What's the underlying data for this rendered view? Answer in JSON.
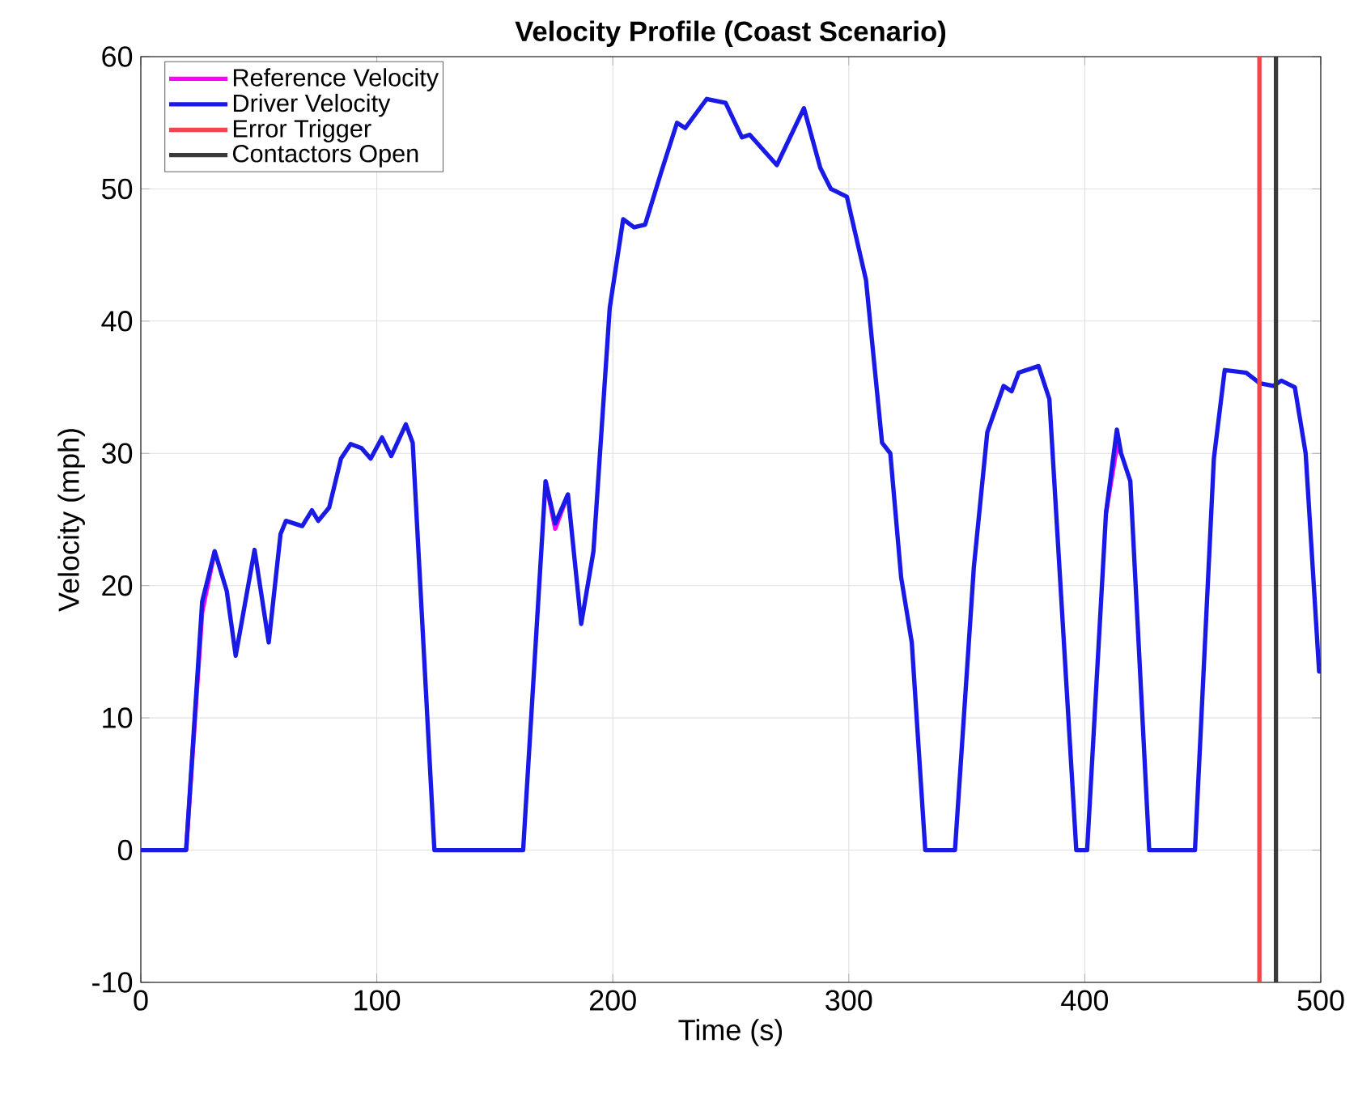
{
  "chart_data": {
    "type": "line",
    "title": "Velocity Profile (Coast Scenario)",
    "xlabel": "Time (s)",
    "ylabel": "Velocity (mph)",
    "xlim": [
      0,
      500
    ],
    "ylim": [
      -10,
      60
    ],
    "xticks": [
      0,
      100,
      200,
      300,
      400,
      500
    ],
    "yticks": [
      -10,
      0,
      10,
      20,
      30,
      40,
      50,
      60
    ],
    "grid": true,
    "legend": "top left",
    "line_style": "solid",
    "marker": "none",
    "series": [
      {
        "name": "Reference Velocity",
        "color": "#ff00ff",
        "x": [
          19.2,
          26,
          31.3,
          null,
          171.5,
          175.6,
          181,
          null,
          409,
          413.6,
          415.4
        ],
        "values": [
          0,
          18,
          22.6,
          null,
          27.9,
          24.3,
          26.9,
          null,
          25.5,
          30.5,
          30
        ]
      },
      {
        "name": "Driver Velocity",
        "color": "#1a1ae6",
        "x": [
          0,
          19.2,
          26,
          31.3,
          36.4,
          40.2,
          48.2,
          54.2,
          59.2,
          61.5,
          68.4,
          72.5,
          75.2,
          79.8,
          84.8,
          88.9,
          93.5,
          97.4,
          102.2,
          106.1,
          112.3,
          115.2,
          124.4,
          162,
          171.5,
          175.6,
          181,
          186.6,
          191.8,
          198.7,
          204.4,
          209,
          213.7,
          220.4,
          227.2,
          230.7,
          239.8,
          247.8,
          254.7,
          258,
          269.5,
          281,
          287.9,
          292.4,
          299.2,
          307.3,
          314.1,
          317.6,
          322.2,
          326.7,
          332.4,
          345,
          353,
          358.7,
          365.6,
          369,
          372,
          380.4,
          385,
          396.4,
          401,
          409,
          413.6,
          415.4,
          419.3,
          427.3,
          446.7,
          454.7,
          459.3,
          468.4,
          474.2,
          479.9,
          483.3,
          489,
          493.6,
          499.3,
          500
        ],
        "values": [
          0,
          0,
          18.8,
          22.6,
          19.6,
          14.7,
          22.7,
          15.7,
          23.9,
          24.9,
          24.5,
          25.7,
          24.9,
          25.9,
          29.6,
          30.7,
          30.4,
          29.6,
          31.2,
          29.8,
          32.2,
          30.8,
          0,
          0,
          27.9,
          24.7,
          26.9,
          17.1,
          22.6,
          41,
          47.7,
          47.1,
          47.3,
          51.2,
          55,
          54.6,
          56.8,
          56.5,
          53.9,
          54.1,
          51.8,
          56.1,
          51.6,
          50,
          49.4,
          43.1,
          30.8,
          30,
          20.6,
          15.7,
          0,
          0,
          21.4,
          31.6,
          35.1,
          34.7,
          36.1,
          36.6,
          34.1,
          0,
          0,
          25.5,
          31.8,
          30,
          27.9,
          0,
          0,
          29.6,
          36.3,
          36.1,
          35.3,
          35.1,
          35.5,
          35,
          30,
          13.5,
          13.7
        ]
      },
      {
        "name": "Error Trigger",
        "color": "#f04848",
        "x": [
          474,
          474
        ],
        "values": [
          -10,
          60
        ]
      },
      {
        "name": "Contactors Open",
        "color": "#3a3a3a",
        "x": [
          481,
          481
        ],
        "values": [
          -10,
          60
        ]
      }
    ]
  }
}
